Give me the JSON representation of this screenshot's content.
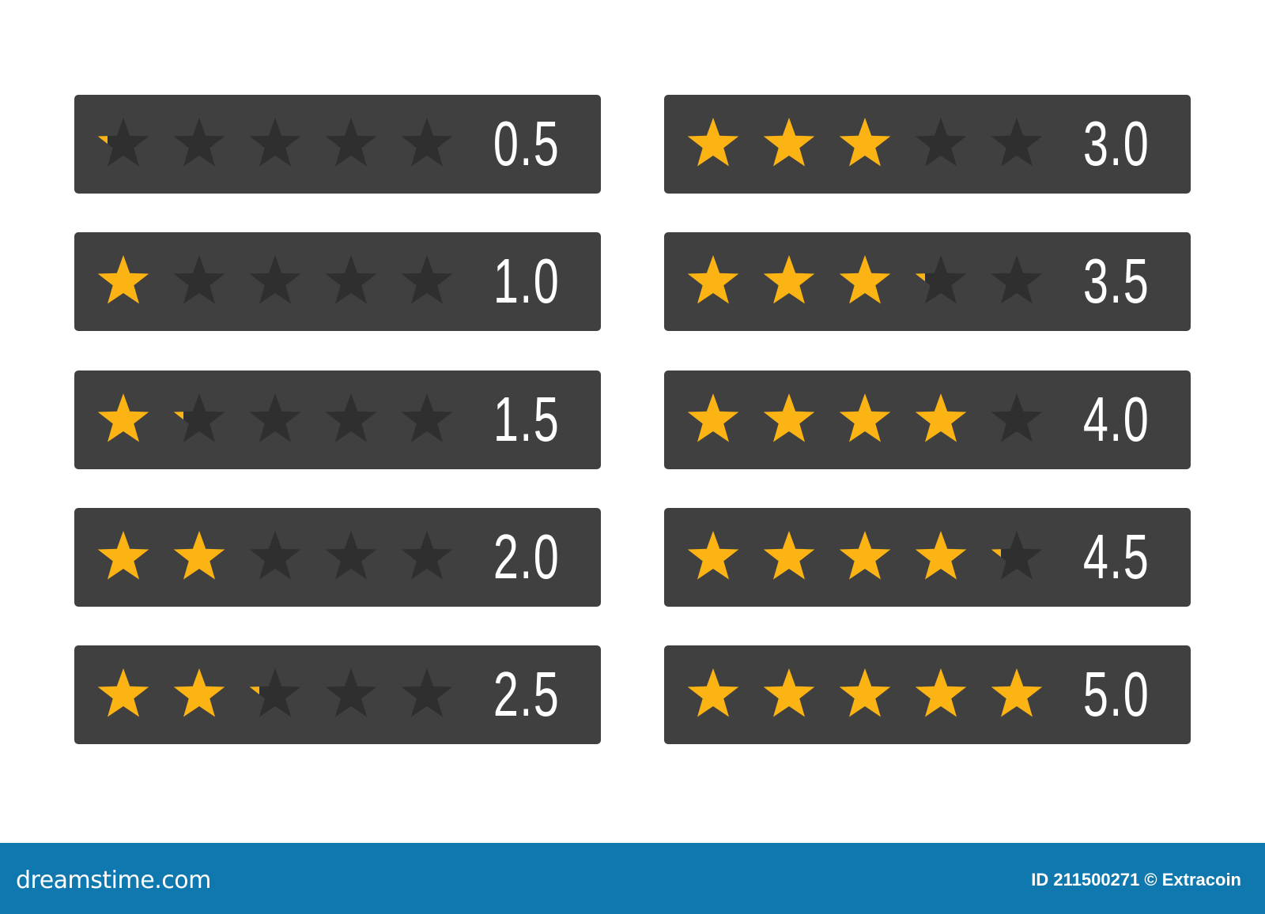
{
  "colors": {
    "panel": "#404040",
    "star_filled": "#fbb414",
    "star_empty": "#2f2f2f",
    "footer": "#0f78ae"
  },
  "max_stars": 5,
  "ratings": [
    {
      "value": 0.5,
      "label": "0.5"
    },
    {
      "value": 1.0,
      "label": "1.0"
    },
    {
      "value": 1.5,
      "label": "1.5"
    },
    {
      "value": 2.0,
      "label": "2.0"
    },
    {
      "value": 2.5,
      "label": "2.5"
    },
    {
      "value": 3.0,
      "label": "3.0"
    },
    {
      "value": 3.5,
      "label": "3.5"
    },
    {
      "value": 4.0,
      "label": "4.0"
    },
    {
      "value": 4.5,
      "label": "4.5"
    },
    {
      "value": 5.0,
      "label": "5.0"
    }
  ],
  "footer": {
    "brand": "dreamstime.com",
    "credit": "ID 211500271 © Extracoin"
  }
}
